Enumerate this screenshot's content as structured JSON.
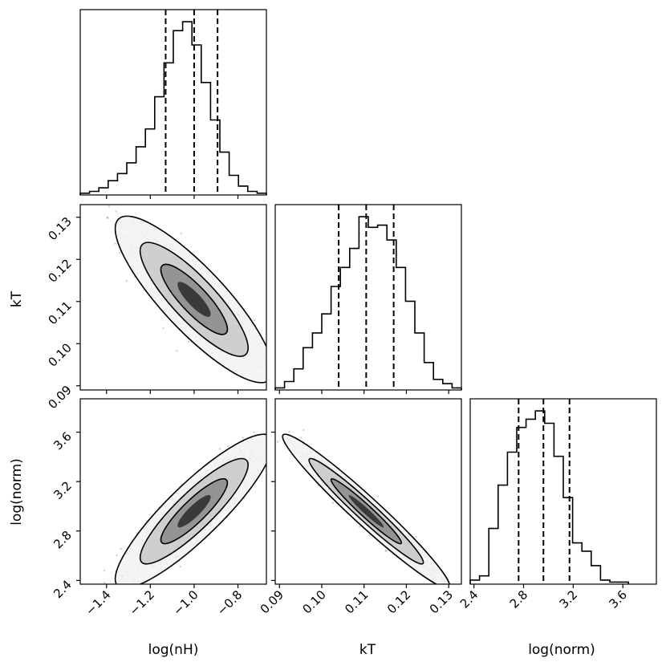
{
  "chart_data": {
    "type": "corner",
    "parameters": [
      "log(nH)",
      "kT",
      "log(norm)"
    ],
    "ranges": {
      "lognH": [
        -1.52,
        -0.67
      ],
      "kT": [
        0.089,
        0.133
      ],
      "lognorm": [
        2.37,
        3.87
      ]
    },
    "ticks": {
      "lognH": [
        -1.4,
        -1.2,
        -1.0,
        -0.8
      ],
      "kT": [
        0.09,
        0.1,
        0.11,
        0.12,
        0.13
      ],
      "lognorm": [
        2.4,
        2.8,
        3.2,
        3.6
      ]
    },
    "tick_labels": {
      "lognH": [
        "−1.4",
        "−1.2",
        "−1.0",
        "−0.8"
      ],
      "kT": [
        "0.09",
        "0.10",
        "0.11",
        "0.12",
        "0.13"
      ],
      "lognorm": [
        "2.4",
        "2.8",
        "3.2",
        "3.6"
      ]
    },
    "quantiles": {
      "lognH": [
        -1.13,
        -1.0,
        -0.893
      ],
      "kT": [
        0.104,
        0.1105,
        0.117
      ],
      "lognorm": [
        2.76,
        2.96,
        3.17
      ]
    },
    "hist_lognH": {
      "edges_start": -1.52,
      "bin_width": 0.0425,
      "counts": [
        1,
        2,
        4,
        8,
        12,
        18,
        27,
        37,
        55,
        74,
        92,
        97,
        84,
        63,
        42,
        24,
        11,
        5,
        2,
        1
      ]
    },
    "hist_kT": {
      "edges_start": 0.089,
      "bin_width": 0.0022,
      "counts": [
        1,
        4,
        10,
        20,
        27,
        36,
        49,
        58,
        67,
        82,
        77,
        78,
        71,
        58,
        42,
        27,
        13,
        5,
        3,
        1
      ]
    },
    "hist_lognorm": {
      "edges_start": 2.37,
      "bin_width": 0.075,
      "counts": [
        2,
        4,
        27,
        48,
        64,
        76,
        80,
        84,
        78,
        62,
        42,
        20,
        16,
        9,
        2,
        1,
        1
      ]
    },
    "correlations": {
      "lognH_kT": -0.85,
      "lognH_lognorm": 0.88,
      "kT_lognorm": -0.97
    },
    "axis_labels": {
      "row1": "kT",
      "row2": "log(norm)",
      "col0": "log(nH)",
      "col1": "kT",
      "col2": "log(norm)"
    }
  }
}
